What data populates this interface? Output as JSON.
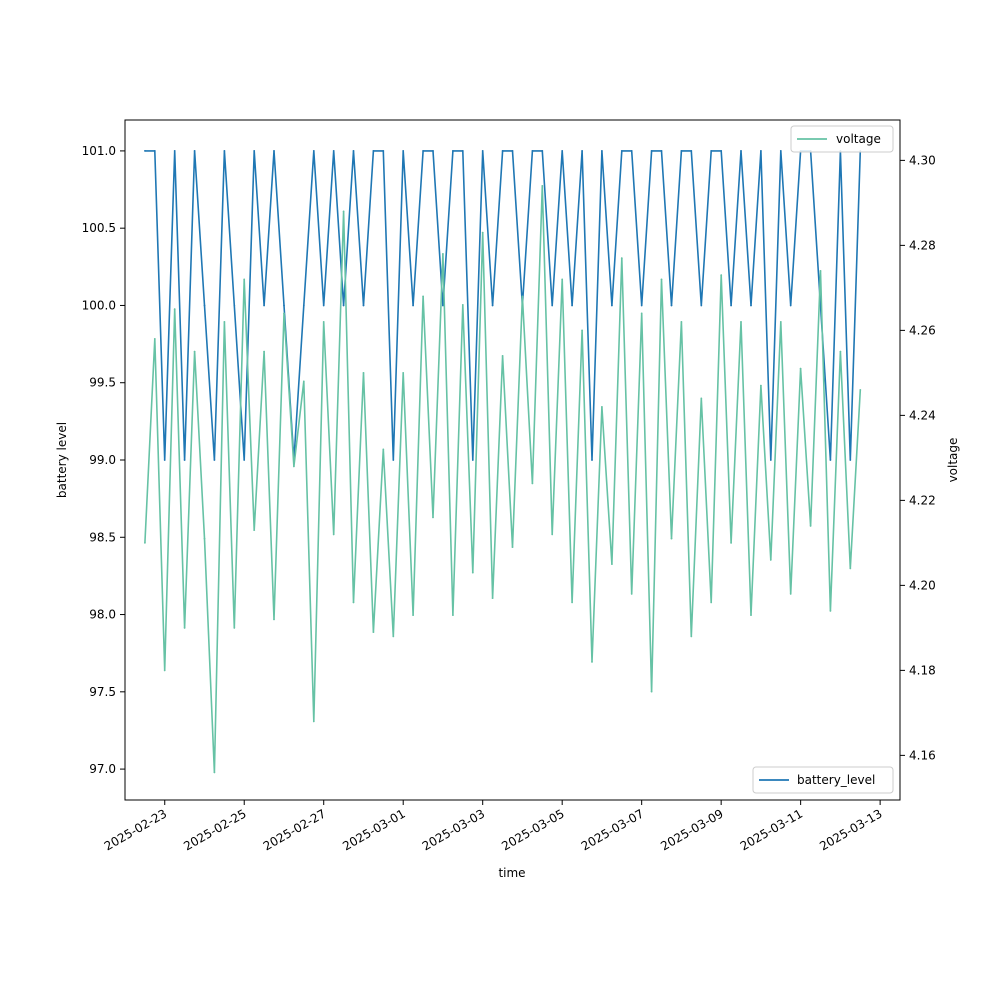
{
  "chart_data": {
    "type": "line",
    "title": "",
    "xlabel": "time",
    "ylabel_left": "battery level",
    "ylabel_right": "voltage",
    "x_range": [
      "2025-02-22T00:00",
      "2025-03-13T12:00"
    ],
    "ylim_left": [
      96.8,
      101.2
    ],
    "ylim_right": [
      4.1495,
      4.3095
    ],
    "x_ticks": [
      "2025-02-23",
      "2025-02-25",
      "2025-02-27",
      "2025-03-01",
      "2025-03-03",
      "2025-03-05",
      "2025-03-07",
      "2025-03-09",
      "2025-03-11",
      "2025-03-13"
    ],
    "y_ticks_left": [
      "97.0",
      "97.5",
      "98.0",
      "98.5",
      "99.0",
      "99.5",
      "100.0",
      "100.5",
      "101.0"
    ],
    "y_ticks_right": [
      "4.16",
      "4.18",
      "4.20",
      "4.22",
      "4.24",
      "4.26",
      "4.28",
      "4.30"
    ],
    "grid": false,
    "legends": [
      {
        "label": "voltage",
        "placement": "top-right"
      },
      {
        "label": "battery_level",
        "placement": "bottom-right"
      }
    ],
    "series": [
      {
        "name": "battery_level",
        "axis": "left",
        "color": "#1f77b4",
        "x": [
          "2025-02-22T12:00",
          "2025-02-22T18:00",
          "2025-02-23T00:00",
          "2025-02-23T06:00",
          "2025-02-23T12:00",
          "2025-02-23T18:00",
          "2025-02-24T00:00",
          "2025-02-24T06:00",
          "2025-02-24T12:00",
          "2025-02-24T18:00",
          "2025-02-25T00:00",
          "2025-02-25T06:00",
          "2025-02-25T12:00",
          "2025-02-25T18:00",
          "2025-02-26T00:00",
          "2025-02-26T06:00",
          "2025-02-26T12:00",
          "2025-02-26T18:00",
          "2025-02-27T00:00",
          "2025-02-27T06:00",
          "2025-02-27T12:00",
          "2025-02-27T18:00",
          "2025-02-28T00:00",
          "2025-02-28T06:00",
          "2025-02-28T12:00",
          "2025-02-28T18:00",
          "2025-03-01T00:00",
          "2025-03-01T06:00",
          "2025-03-01T12:00",
          "2025-03-01T18:00",
          "2025-03-02T00:00",
          "2025-03-02T06:00",
          "2025-03-02T12:00",
          "2025-03-02T18:00",
          "2025-03-03T00:00",
          "2025-03-03T06:00",
          "2025-03-03T12:00",
          "2025-03-03T18:00",
          "2025-03-04T00:00",
          "2025-03-04T06:00",
          "2025-03-04T12:00",
          "2025-03-04T18:00",
          "2025-03-05T00:00",
          "2025-03-05T06:00",
          "2025-03-05T12:00",
          "2025-03-05T18:00",
          "2025-03-06T00:00",
          "2025-03-06T06:00",
          "2025-03-06T12:00",
          "2025-03-06T18:00",
          "2025-03-07T00:00",
          "2025-03-07T06:00",
          "2025-03-07T12:00",
          "2025-03-07T18:00",
          "2025-03-08T00:00",
          "2025-03-08T06:00",
          "2025-03-08T12:00",
          "2025-03-08T18:00",
          "2025-03-09T00:00",
          "2025-03-09T06:00",
          "2025-03-09T12:00",
          "2025-03-09T18:00",
          "2025-03-10T00:00",
          "2025-03-10T06:00",
          "2025-03-10T12:00",
          "2025-03-10T18:00",
          "2025-03-11T00:00",
          "2025-03-11T06:00",
          "2025-03-11T12:00",
          "2025-03-11T18:00",
          "2025-03-12T00:00",
          "2025-03-12T06:00",
          "2025-03-12T12:00"
        ],
        "values": [
          101,
          101,
          99,
          101,
          99,
          101,
          100,
          99,
          101,
          100,
          99,
          101,
          100,
          101,
          100,
          99,
          100,
          101,
          100,
          101,
          100,
          101,
          100,
          101,
          101,
          99,
          101,
          100,
          101,
          101,
          100,
          101,
          101,
          99,
          101,
          100,
          101,
          101,
          100,
          101,
          101,
          100,
          101,
          100,
          101,
          99,
          101,
          100,
          101,
          101,
          100,
          101,
          101,
          100,
          101,
          101,
          100,
          101,
          101,
          100,
          101,
          100,
          101,
          99,
          101,
          100,
          101,
          101,
          100,
          99,
          101,
          99,
          101
        ]
      },
      {
        "name": "voltage",
        "axis": "right",
        "color": "#66c2a5",
        "x": [
          "2025-02-22T12:00",
          "2025-02-22T18:00",
          "2025-02-23T00:00",
          "2025-02-23T06:00",
          "2025-02-23T12:00",
          "2025-02-23T18:00",
          "2025-02-24T00:00",
          "2025-02-24T06:00",
          "2025-02-24T12:00",
          "2025-02-24T18:00",
          "2025-02-25T00:00",
          "2025-02-25T06:00",
          "2025-02-25T12:00",
          "2025-02-25T18:00",
          "2025-02-26T00:00",
          "2025-02-26T06:00",
          "2025-02-26T12:00",
          "2025-02-26T18:00",
          "2025-02-27T00:00",
          "2025-02-27T06:00",
          "2025-02-27T12:00",
          "2025-02-27T18:00",
          "2025-02-28T00:00",
          "2025-02-28T06:00",
          "2025-02-28T12:00",
          "2025-02-28T18:00",
          "2025-03-01T00:00",
          "2025-03-01T06:00",
          "2025-03-01T12:00",
          "2025-03-01T18:00",
          "2025-03-02T00:00",
          "2025-03-02T06:00",
          "2025-03-02T12:00",
          "2025-03-02T18:00",
          "2025-03-03T00:00",
          "2025-03-03T06:00",
          "2025-03-03T12:00",
          "2025-03-03T18:00",
          "2025-03-04T00:00",
          "2025-03-04T06:00",
          "2025-03-04T12:00",
          "2025-03-04T18:00",
          "2025-03-05T00:00",
          "2025-03-05T06:00",
          "2025-03-05T12:00",
          "2025-03-05T18:00",
          "2025-03-06T00:00",
          "2025-03-06T06:00",
          "2025-03-06T12:00",
          "2025-03-06T18:00",
          "2025-03-07T00:00",
          "2025-03-07T06:00",
          "2025-03-07T12:00",
          "2025-03-07T18:00",
          "2025-03-08T00:00",
          "2025-03-08T06:00",
          "2025-03-08T12:00",
          "2025-03-08T18:00",
          "2025-03-09T00:00",
          "2025-03-09T06:00",
          "2025-03-09T12:00",
          "2025-03-09T18:00",
          "2025-03-10T00:00",
          "2025-03-10T06:00",
          "2025-03-10T12:00",
          "2025-03-10T18:00",
          "2025-03-11T00:00",
          "2025-03-11T06:00",
          "2025-03-11T12:00",
          "2025-03-11T18:00",
          "2025-03-12T00:00",
          "2025-03-12T06:00",
          "2025-03-12T12:00"
        ],
        "values": [
          4.21,
          4.258,
          4.18,
          4.265,
          4.19,
          4.255,
          4.211,
          4.156,
          4.262,
          4.19,
          4.272,
          4.213,
          4.255,
          4.192,
          4.264,
          4.228,
          4.248,
          4.168,
          4.262,
          4.212,
          4.288,
          4.196,
          4.25,
          4.189,
          4.232,
          4.188,
          4.25,
          4.193,
          4.268,
          4.216,
          4.278,
          4.193,
          4.266,
          4.203,
          4.283,
          4.197,
          4.254,
          4.209,
          4.268,
          4.224,
          4.294,
          4.212,
          4.272,
          4.196,
          4.26,
          4.182,
          4.242,
          4.205,
          4.277,
          4.198,
          4.264,
          4.175,
          4.272,
          4.211,
          4.262,
          4.188,
          4.244,
          4.196,
          4.273,
          4.21,
          4.262,
          4.193,
          4.247,
          4.206,
          4.262,
          4.198,
          4.251,
          4.214,
          4.274,
          4.194,
          4.255,
          4.204,
          4.246
        ]
      }
    ]
  }
}
